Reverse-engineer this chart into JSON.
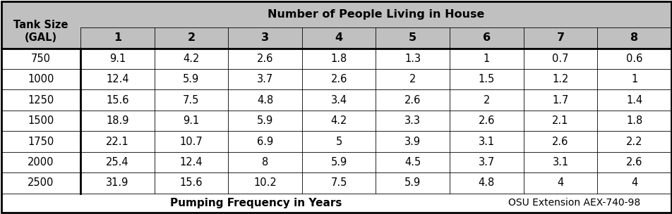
{
  "header_row1_left": "Tank Size",
  "header_row1_center": "Number of People Living in House",
  "header_row2_left": "(GAL)",
  "header_row2_cols": [
    "1",
    "2",
    "3",
    "4",
    "5",
    "6",
    "7",
    "8"
  ],
  "tank_sizes": [
    "750",
    "1000",
    "1250",
    "1500",
    "1750",
    "2000",
    "2500"
  ],
  "data": [
    [
      "9.1",
      "4.2",
      "2.6",
      "1.8",
      "1.3",
      "1",
      "0.7",
      "0.6"
    ],
    [
      "12.4",
      "5.9",
      "3.7",
      "2.6",
      "2",
      "1.5",
      "1.2",
      "1"
    ],
    [
      "15.6",
      "7.5",
      "4.8",
      "3.4",
      "2.6",
      "2",
      "1.7",
      "1.4"
    ],
    [
      "18.9",
      "9.1",
      "5.9",
      "4.2",
      "3.3",
      "2.6",
      "2.1",
      "1.8"
    ],
    [
      "22.1",
      "10.7",
      "6.9",
      "5",
      "3.9",
      "3.1",
      "2.6",
      "2.2"
    ],
    [
      "25.4",
      "12.4",
      "8",
      "5.9",
      "4.5",
      "3.7",
      "3.1",
      "2.6"
    ],
    [
      "31.9",
      "15.6",
      "10.2",
      "7.5",
      "5.9",
      "4.8",
      "4",
      "4"
    ]
  ],
  "footer_left": "Pumping Frequency in Years",
  "footer_right": "OSU Extension AEX-740-98",
  "header_bg": "#c0c0c0",
  "data_bg": "#ffffff",
  "border_color": "#000000",
  "header_font_size": 10.5,
  "data_font_size": 10.5,
  "footer_font_size": 10
}
